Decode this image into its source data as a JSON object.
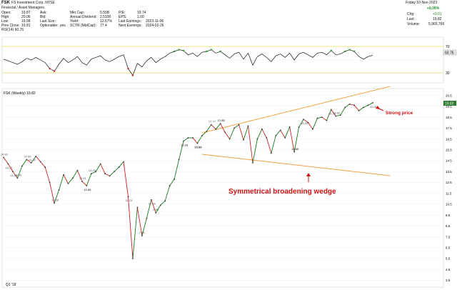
{
  "header": {
    "symbol": "FSK",
    "company": "FS Investment Corp. NYSE",
    "sector": "Financial / Asset Managers",
    "rows": [
      [
        [
          "Open:",
          "19.87"
        ],
        [
          "Ask:",
          ""
        ],
        [
          "Mkt Cap:",
          "5.55B"
        ],
        [
          "P/E:",
          "19.74"
        ]
      ],
      [
        [
          "High:",
          "20.06"
        ],
        [
          "Bid:",
          ""
        ],
        [
          "Annual Dividend:",
          "2.5100"
        ],
        [
          "EPS:",
          "1.00"
        ]
      ],
      [
        [
          "Low:",
          "19.58"
        ],
        [
          "Last Size:",
          ""
        ],
        [
          "Yield:",
          "12.67%"
        ],
        [
          "Last Earnings:",
          "2023-11-06"
        ]
      ],
      [
        [
          "Prev Close:",
          "19.81"
        ],
        [
          "Optionable:",
          "yes"
        ],
        [
          "SCTR (MidCap):",
          "77.4"
        ],
        [
          "Next Earnings:",
          "2024-02-26"
        ]
      ]
    ],
    "date": "Friday 10-Nov-2023",
    "change_pct": "+0.05%",
    "chg_label": "Chg:",
    "chg_value": "+0.01",
    "last_label": "Last:",
    "last_value": "19.82",
    "volume_label": "Volume:",
    "volume_value": "5,965,766"
  },
  "rsi_panel": {
    "label": "RSI(14) 60.76",
    "levels": [
      "70",
      "30"
    ],
    "current_badge": "60.76"
  },
  "price_panel": {
    "label": "FSK (Weekly) 19.82",
    "y_ticks": [
      "20.5",
      "19.5",
      "18.5",
      "17.5",
      "16.5",
      "15.5",
      "14.5",
      "13.5",
      "12.5",
      "11.5",
      "10.5",
      "9.5",
      "8.5",
      "7.5",
      "6.5",
      "5.5",
      "4.5",
      "3.5"
    ],
    "x_tick_label": "Q1 '18",
    "last_badge": "19.82"
  },
  "annotations": {
    "wedge_label": "Symmetrical broadening wedge",
    "strong_price_label": "Strong price"
  },
  "chart_data": {
    "type": "line",
    "title": "FSK (Weekly) 19.82",
    "series": [
      {
        "name": "FSK (Weekly)",
        "x": [
          0,
          4,
          8,
          12,
          16,
          20,
          24,
          28,
          32,
          36,
          40,
          44,
          48,
          52,
          56,
          60,
          64,
          68,
          72,
          76,
          80,
          84,
          88,
          92,
          96,
          100,
          104,
          108,
          112,
          116,
          120,
          124,
          128,
          132,
          136,
          140,
          144,
          148,
          152,
          156,
          160,
          164,
          168,
          172,
          176,
          180,
          184,
          188,
          192,
          196,
          200,
          204,
          208,
          212,
          216,
          220,
          224,
          228,
          232,
          236,
          240,
          244,
          248,
          252,
          256,
          260,
          264,
          268,
          272,
          276,
          280,
          284,
          288,
          292,
          296,
          300,
          304,
          308,
          312,
          316,
          320
        ],
        "values": [
          14.8,
          14.2,
          13.5,
          12.9,
          14.0,
          14.6,
          14.3,
          14.9,
          14.4,
          13.9,
          12.5,
          10.6,
          11.8,
          13.2,
          12.4,
          12.9,
          13.6,
          12.6,
          12.2,
          13.3,
          13.5,
          14.2,
          13.3,
          13.1,
          13.5,
          13.9,
          14.4,
          11.2,
          5.5,
          10.2,
          7.6,
          9.2,
          10.9,
          9.7,
          10.4,
          10.8,
          12.2,
          12.8,
          14.6,
          16.3,
          16.6,
          16.6,
          16.1,
          16.8,
          17.2,
          17.8,
          17.4,
          17.9,
          17.1,
          16.5,
          17.5,
          17.8,
          16.4,
          17.7,
          14.3,
          16.5,
          17.4,
          16.6,
          15.2,
          16.8,
          17.3,
          16.6,
          17.6,
          15.3,
          17.6,
          18.3,
          18.0,
          17.4,
          18.4,
          18.5,
          18.2,
          19.2,
          18.6,
          18.7,
          19.4,
          19.7,
          19.6,
          19.1,
          19.4,
          19.6,
          19.82
        ]
      }
    ],
    "price_labels": [
      "14.80",
      "13.46",
      "12.95",
      "14.21",
      "12.61",
      "12.09",
      "10.58",
      "12.20",
      "13.29",
      "19.21",
      "7.68",
      "11.23",
      "9.65",
      "10.89",
      "14.55",
      "16.21",
      "15.40",
      "15.85",
      "17.77",
      "16.09",
      "17.85",
      "15.85",
      "14.34",
      "16.29",
      "17.85",
      "18.25",
      "15.56",
      "20.31",
      "18.60"
    ],
    "xlabel": "",
    "ylabel": "",
    "ylim": [
      3.0,
      21.0
    ],
    "rsi": {
      "name": "RSI(14)",
      "values": [
        52,
        48,
        44,
        40,
        46,
        54,
        50,
        56,
        50,
        44,
        30,
        24,
        40,
        54,
        44,
        50,
        58,
        44,
        38,
        52,
        56,
        60,
        50,
        46,
        52,
        58,
        62,
        30,
        14,
        42,
        34,
        48,
        56,
        44,
        52,
        58,
        66,
        70,
        74,
        72,
        62,
        66,
        58,
        68,
        70,
        74,
        66,
        70,
        62,
        54,
        64,
        68,
        52,
        66,
        38,
        58,
        64,
        56,
        46,
        60,
        64,
        56,
        66,
        50,
        64,
        68,
        62,
        56,
        66,
        68,
        62,
        72,
        62,
        64,
        70,
        74,
        70,
        58,
        52,
        58,
        60.76
      ],
      "levels": [
        70,
        30
      ],
      "ylim": [
        0,
        100
      ]
    }
  }
}
